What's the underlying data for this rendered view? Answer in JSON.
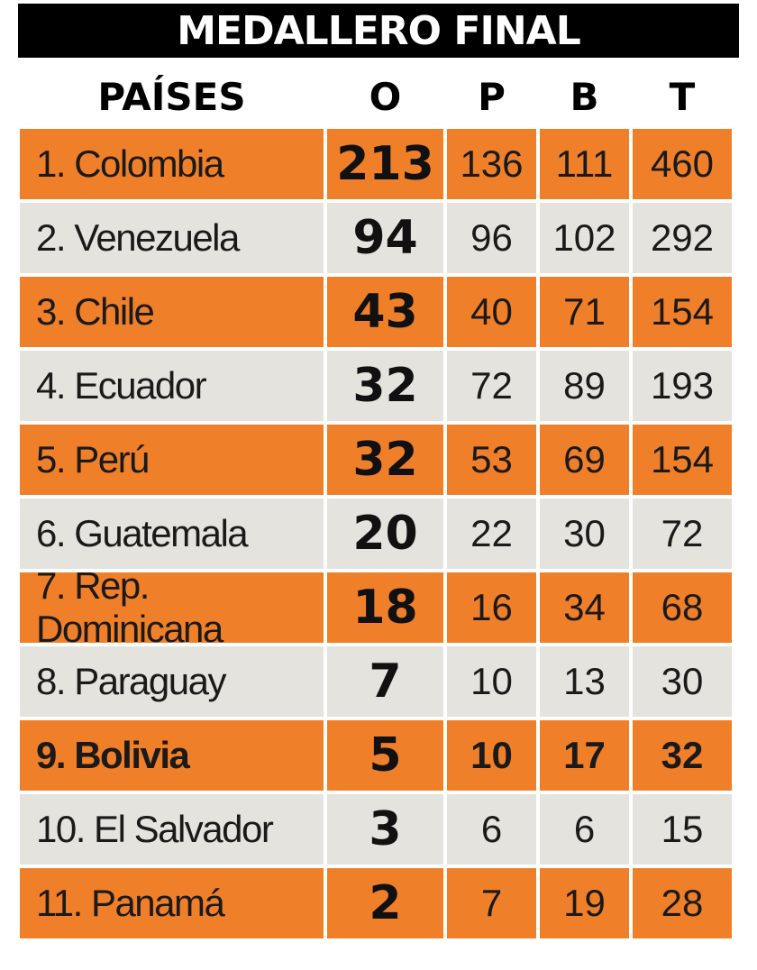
{
  "title": "MEDALLERO FINAL",
  "headers": {
    "country": "PAÍSES",
    "o": "O",
    "p": "P",
    "b": "B",
    "t": "T"
  },
  "colors": {
    "orange": "#f07f2a",
    "gray": "#e4e3dd",
    "title_bg": "#000000"
  },
  "rows": [
    {
      "country": "1. Colombia",
      "o": "213",
      "p": "136",
      "b": "111",
      "t": "460"
    },
    {
      "country": "2. Venezuela",
      "o": "94",
      "p": "96",
      "b": "102",
      "t": "292"
    },
    {
      "country": "3. Chile",
      "o": "43",
      "p": "40",
      "b": "71",
      "t": "154"
    },
    {
      "country": "4. Ecuador",
      "o": "32",
      "p": "72",
      "b": "89",
      "t": "193"
    },
    {
      "country": "5. Perú",
      "o": "32",
      "p": "53",
      "b": "69",
      "t": "154"
    },
    {
      "country": "6. Guatemala",
      "o": "20",
      "p": "22",
      "b": "30",
      "t": "72"
    },
    {
      "country": "7. Rep. Dominicana",
      "o": "18",
      "p": "16",
      "b": "34",
      "t": "68"
    },
    {
      "country": "8. Paraguay",
      "o": "7",
      "p": "10",
      "b": "13",
      "t": "30"
    },
    {
      "country": "9. Bolivia",
      "o": "5",
      "p": "10",
      "b": "17",
      "t": "32",
      "highlight": true
    },
    {
      "country": "10. El Salvador",
      "o": "3",
      "p": "6",
      "b": "6",
      "t": "15"
    },
    {
      "country": "11. Panamá",
      "o": "2",
      "p": "7",
      "b": "19",
      "t": "28"
    }
  ]
}
